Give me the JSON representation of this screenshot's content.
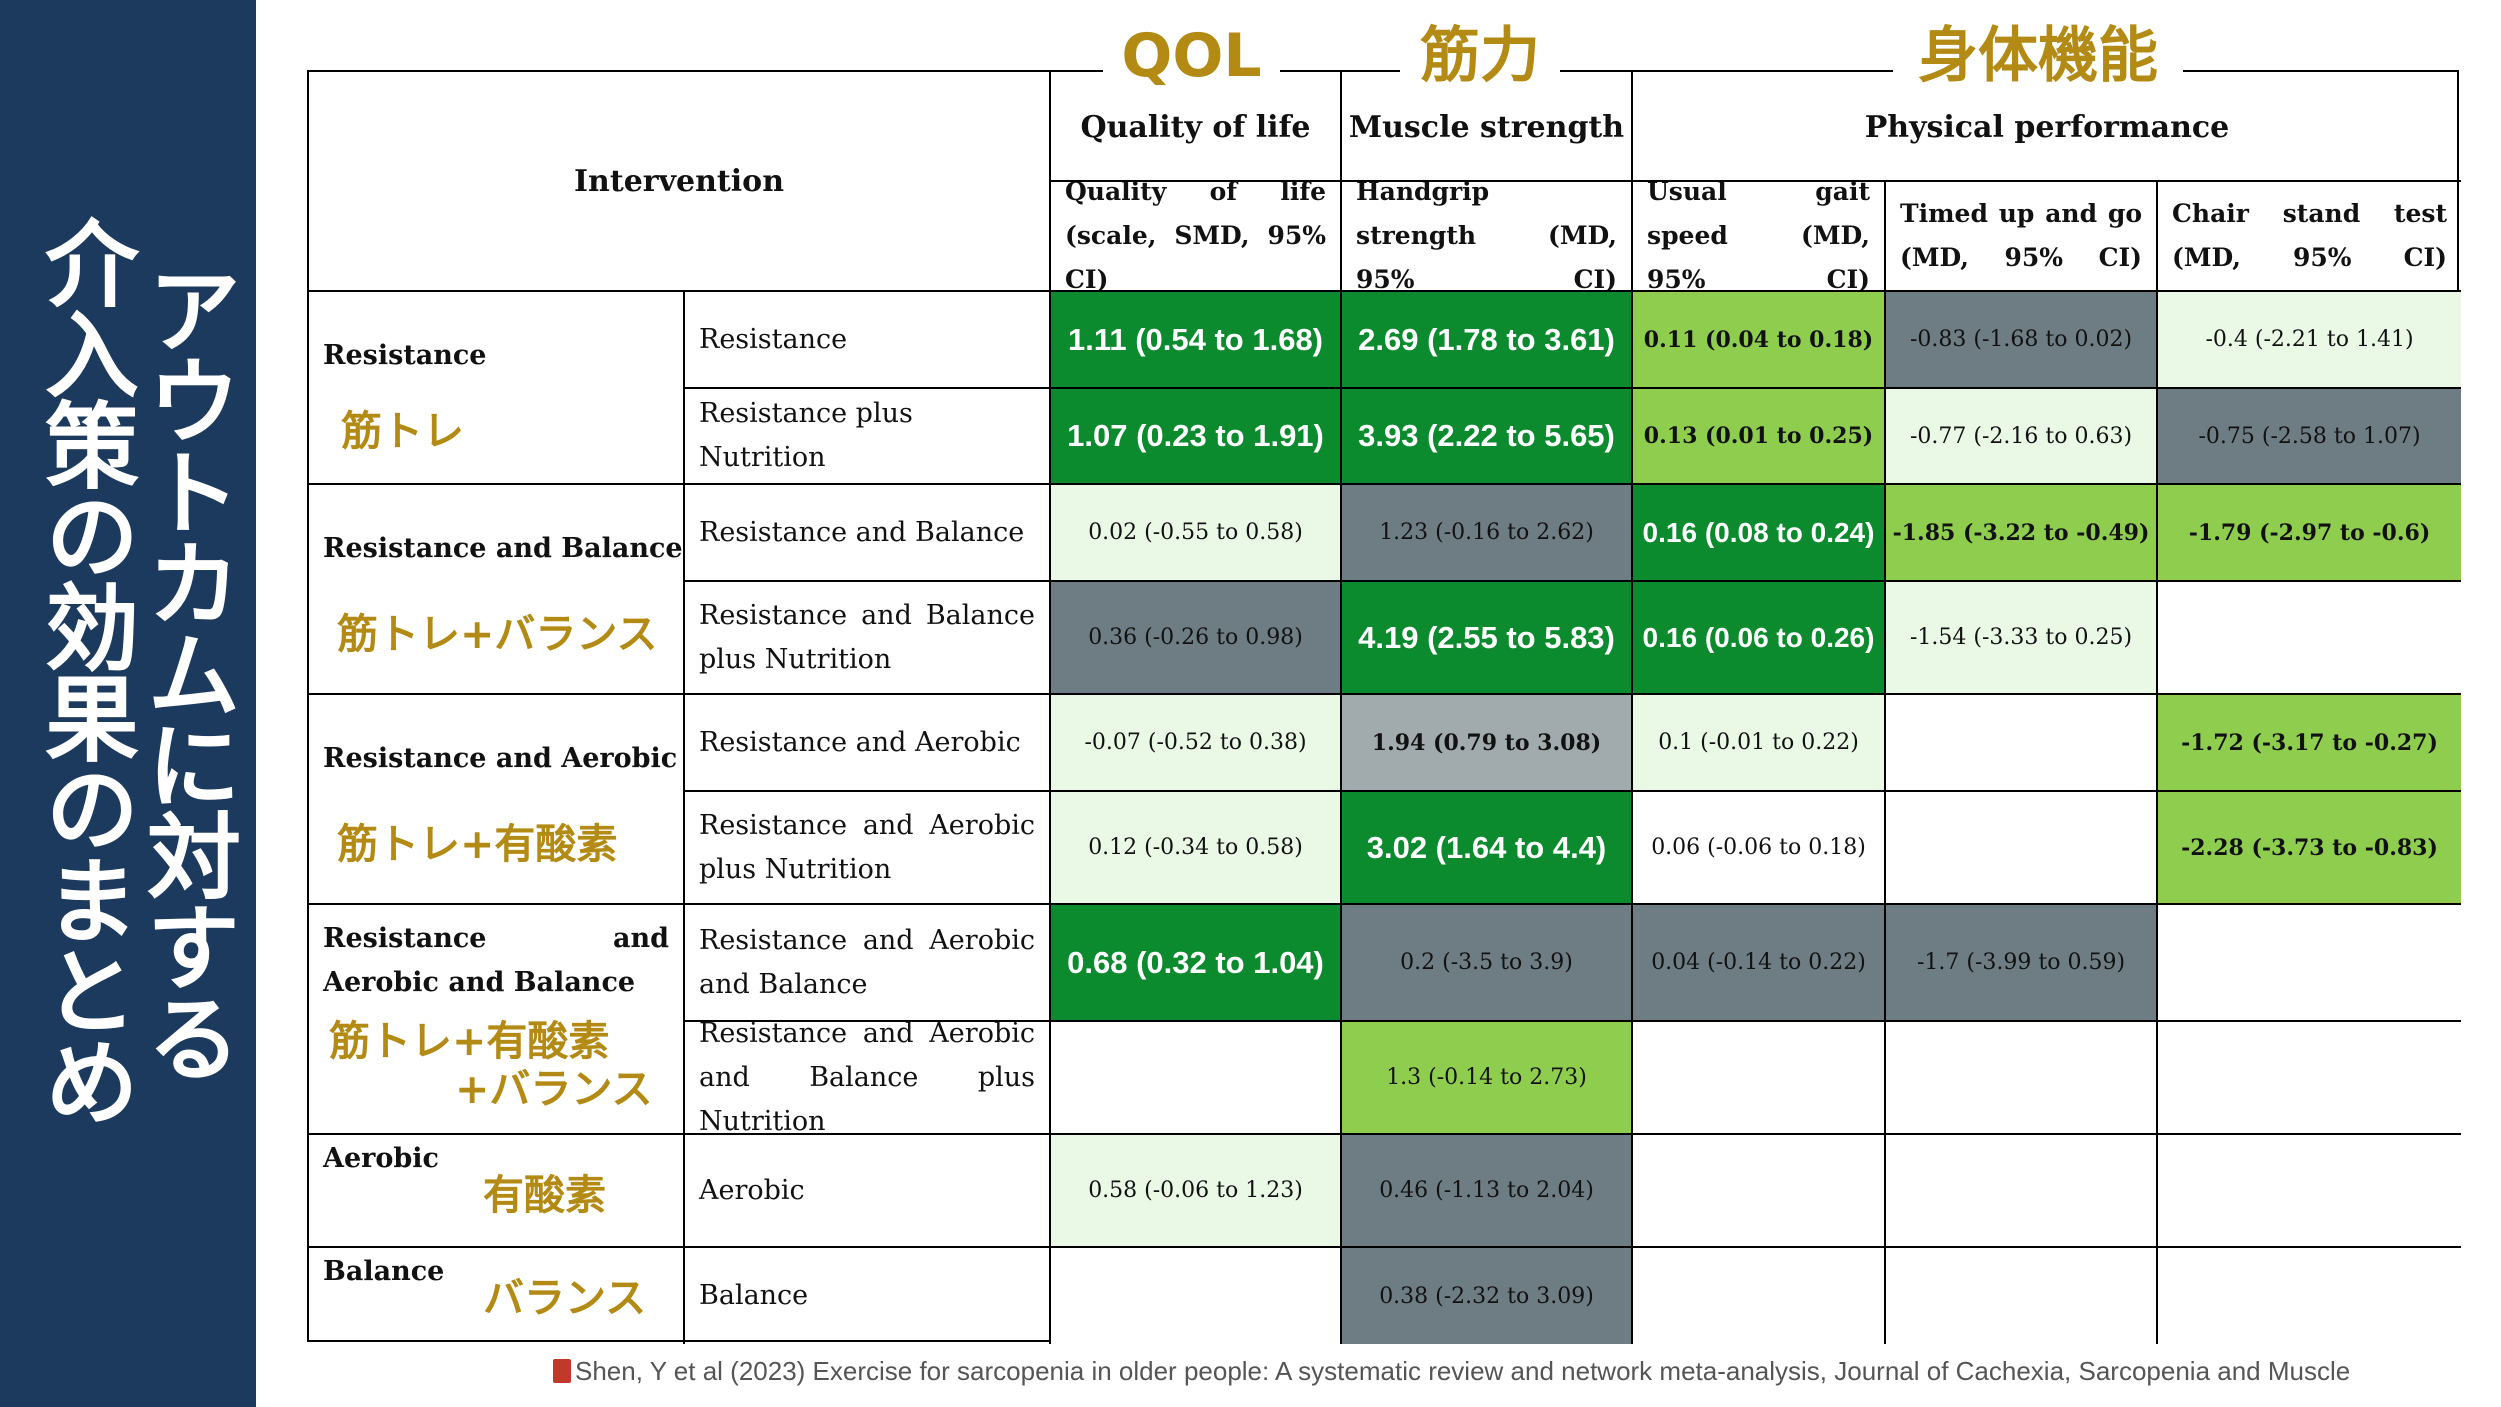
{
  "sidebar": {
    "title_line1": "アウトカムに対する",
    "title_line2": "介入策の効果のまとめ"
  },
  "headers": {
    "intervention": "Intervention",
    "qol_jp": "QOL",
    "qol_en": "Quality of life",
    "strength_jp": "筋力",
    "strength_en": "Muscle strength",
    "physical_jp": "身体機能",
    "physical_en": "Physical performance",
    "col_qol": "Quality of life (scale, SMD, 95% CI)",
    "col_grip": "Handgrip strength (MD, 95% CI)",
    "col_gait": "Usual gait speed (MD, 95% CI)",
    "col_tug": "Timed up and go (MD, 95% CI)",
    "col_chair": "Chair stand test (MD, 95% CI)"
  },
  "groups": [
    {
      "en": "Resistance",
      "jp": "筋トレ"
    },
    {
      "en": "Resistance and Balance",
      "jp": "筋トレ+バランス"
    },
    {
      "en": "Resistance and Aerobic",
      "jp": "筋トレ+有酸素"
    },
    {
      "en": "Resistance and Aerobic and Balance",
      "jp": "筋トレ+有酸素",
      "jp2": "+バランス"
    },
    {
      "en": "Aerobic",
      "jp": "有酸素"
    },
    {
      "en": "Balance",
      "jp": "バランス"
    }
  ],
  "rows": [
    {
      "label": "Resistance",
      "qol": "1.11 (0.54 to 1.68)",
      "grip": "2.69 (1.78 to 3.61)",
      "gait": "0.11 (0.04 to 0.18)",
      "tug": "-0.83 (-1.68 to 0.02)",
      "chair": "-0.4 (-2.21 to 1.41)"
    },
    {
      "label": "Resistance plus Nutrition",
      "qol": "1.07 (0.23 to 1.91)",
      "grip": "3.93 (2.22 to 5.65)",
      "gait": "0.13 (0.01 to 0.25)",
      "tug": "-0.77 (-2.16 to 0.63)",
      "chair": "-0.75 (-2.58 to 1.07)"
    },
    {
      "label": "Resistance and Balance",
      "qol": "0.02 (-0.55 to 0.58)",
      "grip": "1.23 (-0.16 to 2.62)",
      "gait": "0.16 (0.08 to 0.24)",
      "tug": "-1.85 (-3.22 to -0.49)",
      "chair": "-1.79 (-2.97 to -0.6)"
    },
    {
      "label": "Resistance and Balance plus Nutrition",
      "qol": "0.36 (-0.26 to 0.98)",
      "grip": "4.19 (2.55 to 5.83)",
      "gait": "0.16 (0.06 to 0.26)",
      "tug": "-1.54 (-3.33 to 0.25)",
      "chair": ""
    },
    {
      "label": "Resistance and Aerobic",
      "qol": "-0.07 (-0.52 to 0.38)",
      "grip": "1.94 (0.79 to 3.08)",
      "gait": "0.1 (-0.01 to 0.22)",
      "tug": "",
      "chair": "-1.72 (-3.17 to -0.27)"
    },
    {
      "label": "Resistance and Aerobic plus Nutrition",
      "qol": "0.12 (-0.34 to 0.58)",
      "grip": "3.02 (1.64 to 4.4)",
      "gait": "0.06 (-0.06 to 0.18)",
      "tug": "",
      "chair": "-2.28 (-3.73 to -0.83)"
    },
    {
      "label": "Resistance and Aerobic and Balance",
      "qol": "0.68 (0.32 to 1.04)",
      "grip": "0.2 (-3.5 to 3.9)",
      "gait": "0.04 (-0.14 to 0.22)",
      "tug": "-1.7 (-3.99 to 0.59)",
      "chair": ""
    },
    {
      "label": "Resistance and Aerobic and Balance plus Nutrition",
      "qol": "",
      "grip": "1.3 (-0.14 to 2.73)",
      "gait": "",
      "tug": "",
      "chair": ""
    },
    {
      "label": "Aerobic",
      "qol": "0.58 (-0.06 to 1.23)",
      "grip": "0.46 (-1.13 to 2.04)",
      "gait": "",
      "tug": "",
      "chair": ""
    },
    {
      "label": "Balance",
      "qol": "",
      "grip": "0.38 (-2.32 to 3.09)",
      "gait": "",
      "tug": "",
      "chair": ""
    }
  ],
  "colors": {
    "dark_green": "#0b8a2e",
    "light_green": "#8fcd4f",
    "pale_green": "#e9f9e6",
    "dark_gray": "#6e7d84",
    "light_gray": "#a1aaad",
    "sidebar": "#1c3a5e",
    "gold": "#b38b14"
  },
  "citation": "Shen, Y et al (2023) Exercise for sarcopenia in older people: A systematic review and network meta-analysis, Journal of Cachexia, Sarcopenia and Muscle"
}
